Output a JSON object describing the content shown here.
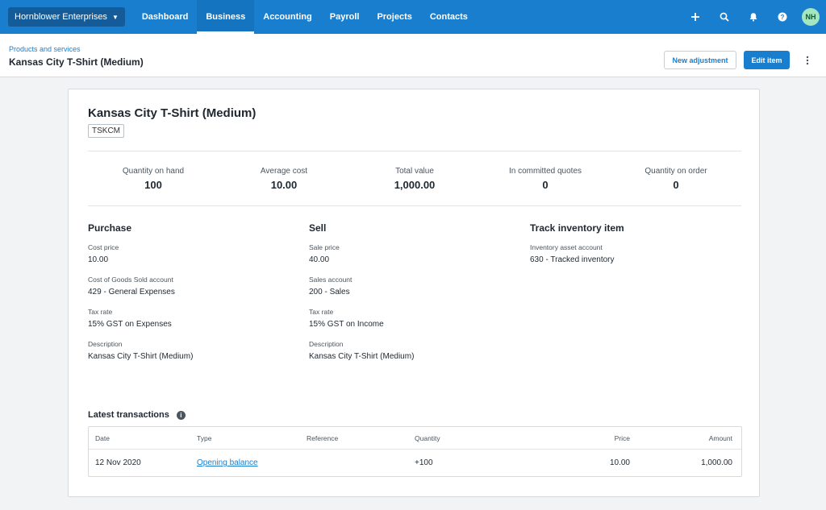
{
  "org": {
    "name": "Hornblower Enterprises"
  },
  "nav": {
    "tabs": [
      {
        "label": "Dashboard"
      },
      {
        "label": "Business"
      },
      {
        "label": "Accounting"
      },
      {
        "label": "Payroll"
      },
      {
        "label": "Projects"
      },
      {
        "label": "Contacts"
      }
    ],
    "active_tab": "Business",
    "user_initials": "NH"
  },
  "header": {
    "breadcrumb": "Products and services",
    "title": "Kansas City T-Shirt (Medium)",
    "new_adjustment_label": "New adjustment",
    "edit_item_label": "Edit item"
  },
  "item": {
    "name": "Kansas City T-Shirt (Medium)",
    "code": "TSKCM"
  },
  "stats": [
    {
      "label": "Quantity on hand",
      "value": "100"
    },
    {
      "label": "Average cost",
      "value": "10.00"
    },
    {
      "label": "Total value",
      "value": "1,000.00"
    },
    {
      "label": "In committed quotes",
      "value": "0"
    },
    {
      "label": "Quantity on order",
      "value": "0"
    }
  ],
  "purchase": {
    "heading": "Purchase",
    "fields": [
      {
        "label": "Cost price",
        "value": "10.00"
      },
      {
        "label": "Cost of Goods Sold account",
        "value": "429 - General Expenses"
      },
      {
        "label": "Tax rate",
        "value": "15% GST on Expenses"
      },
      {
        "label": "Description",
        "value": "Kansas City T-Shirt (Medium)"
      }
    ]
  },
  "sell": {
    "heading": "Sell",
    "fields": [
      {
        "label": "Sale price",
        "value": "40.00"
      },
      {
        "label": "Sales account",
        "value": "200 - Sales"
      },
      {
        "label": "Tax rate",
        "value": "15% GST on Income"
      },
      {
        "label": "Description",
        "value": "Kansas City T-Shirt (Medium)"
      }
    ]
  },
  "track": {
    "heading": "Track inventory item",
    "fields": [
      {
        "label": "Inventory asset account",
        "value": "630 - Tracked inventory"
      }
    ]
  },
  "transactions": {
    "heading": "Latest transactions",
    "columns": [
      "Date",
      "Type",
      "Reference",
      "Quantity",
      "Price",
      "Amount"
    ],
    "rows": [
      {
        "date": "12 Nov 2020",
        "type": "Opening balance",
        "reference": "",
        "quantity": "+100",
        "price": "10.00",
        "amount": "1,000.00"
      }
    ]
  },
  "colors": {
    "brand": "#1a7ecf",
    "org_button": "#135c99",
    "avatar_bg": "#a4e6c0"
  },
  "icons": [
    "plus-icon",
    "search-icon",
    "bell-icon",
    "help-icon",
    "info-icon",
    "kebab-menu-icon",
    "caret-down-icon"
  ]
}
